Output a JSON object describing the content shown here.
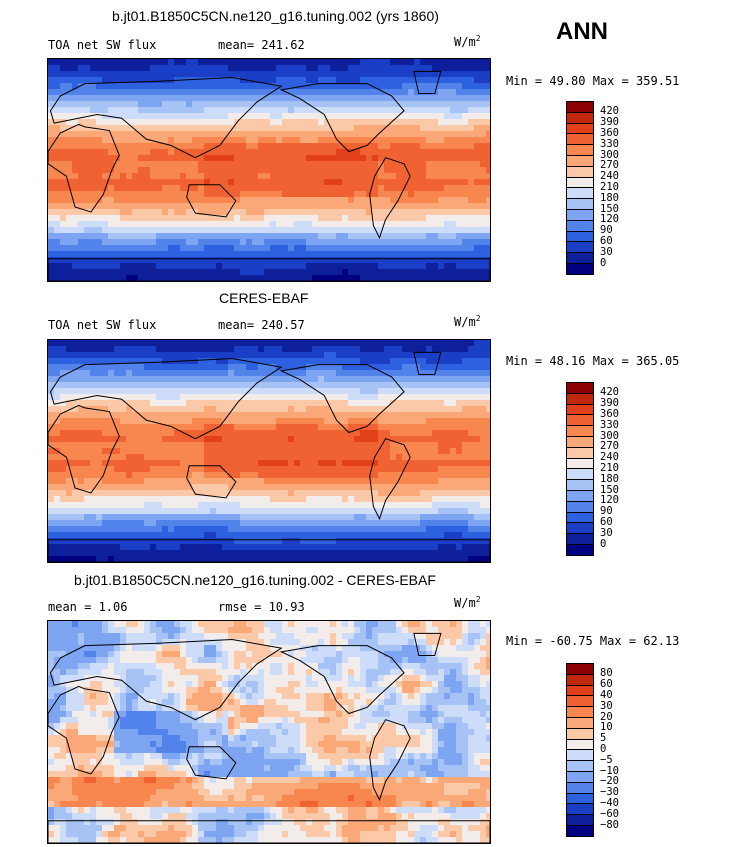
{
  "season": "ANN",
  "unit": "W/m",
  "unit_sup": "2",
  "panels": [
    {
      "title": "b.jt01.B1850C5CN.ne120_g16.tuning.002 (yrs 1860)",
      "left_label": "TOA net SW flux",
      "stat_label": "mean= 241.62",
      "minmax": "Min =  49.80 Max = 359.51"
    },
    {
      "title": "CERES-EBAF",
      "left_label": "TOA net SW flux",
      "stat_label": "mean= 240.57",
      "minmax": "Min =  48.16 Max = 365.05"
    },
    {
      "title": "b.jt01.B1850C5CN.ne120_g16.tuning.002 - CERES-EBAF",
      "left_label": "mean =   1.06",
      "stat_label": "rmse =  10.93",
      "minmax": "Min = -60.75 Max =  62.13"
    }
  ],
  "chart_data": [
    {
      "type": "heatmap",
      "title": "b.jt01.B1850C5CN.ne120_g16.tuning.002 (yrs 1860)",
      "variable": "TOA net SW flux",
      "units": "W/m2",
      "mean": 241.62,
      "min": 49.8,
      "max": 359.51,
      "colorbar_levels": [
        "420",
        "390",
        "360",
        "330",
        "300",
        "270",
        "240",
        "210",
        "180",
        "150",
        "120",
        "90",
        "60",
        "30",
        "0"
      ],
      "colorbar_colors": [
        "#8b0000",
        "#c1270a",
        "#e2401b",
        "#f06231",
        "#f7864f",
        "#fba878",
        "#fcc9a8",
        "#f2ecea",
        "#cddcf8",
        "#a7c2f5",
        "#7ea5f1",
        "#5283ea",
        "#2e61df",
        "#1a3fc6",
        "#0d1f9a",
        "#000080"
      ]
    },
    {
      "type": "heatmap",
      "title": "CERES-EBAF",
      "variable": "TOA net SW flux",
      "units": "W/m2",
      "mean": 240.57,
      "min": 48.16,
      "max": 365.05,
      "colorbar_levels": [
        "420",
        "390",
        "360",
        "330",
        "300",
        "270",
        "240",
        "210",
        "180",
        "150",
        "120",
        "90",
        "60",
        "30",
        "0"
      ],
      "colorbar_colors": [
        "#8b0000",
        "#c1270a",
        "#e2401b",
        "#f06231",
        "#f7864f",
        "#fba878",
        "#fcc9a8",
        "#f2ecea",
        "#cddcf8",
        "#a7c2f5",
        "#7ea5f1",
        "#5283ea",
        "#2e61df",
        "#1a3fc6",
        "#0d1f9a",
        "#000080"
      ]
    },
    {
      "type": "heatmap",
      "title": "b.jt01.B1850C5CN.ne120_g16.tuning.002 - CERES-EBAF",
      "units": "W/m2",
      "mean": 1.06,
      "rmse": 10.93,
      "min": -60.75,
      "max": 62.13,
      "colorbar_levels": [
        "80",
        "60",
        "40",
        "30",
        "20",
        "10",
        "5",
        "0",
        "−5",
        "−10",
        "−20",
        "−30",
        "−40",
        "−60",
        "−80"
      ],
      "colorbar_colors": [
        "#8b0000",
        "#c1270a",
        "#e2401b",
        "#f06231",
        "#f7864f",
        "#fba878",
        "#fcc9a8",
        "#f2ecea",
        "#cddcf8",
        "#a7c2f5",
        "#7ea5f1",
        "#5283ea",
        "#2e61df",
        "#1a3fc6",
        "#0d1f9a",
        "#000080"
      ]
    }
  ]
}
